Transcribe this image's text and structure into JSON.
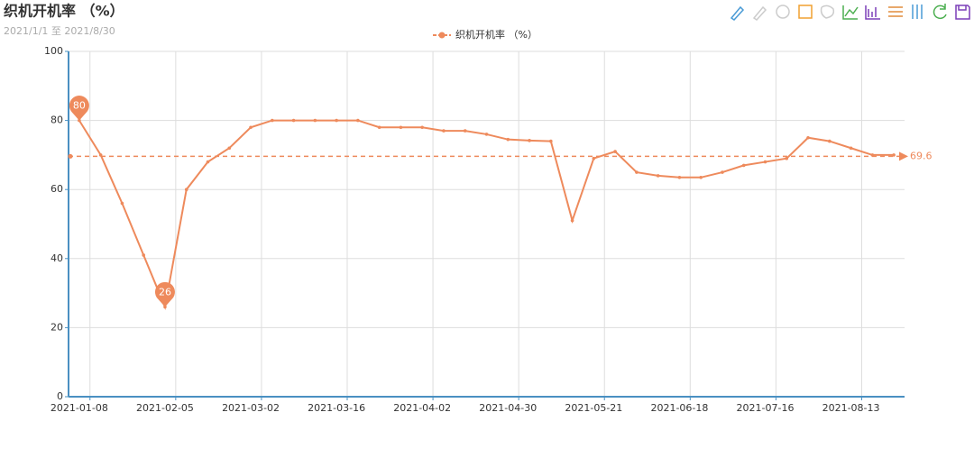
{
  "chart_data": {
    "type": "line",
    "title": "织机开机率 （%）",
    "subtitle": "2021/1/1 至 2021/8/30",
    "categories": [
      "2021-01-08",
      null,
      null,
      null,
      "2021-02-05",
      null,
      null,
      null,
      "2021-03-02",
      null,
      null,
      null,
      "2021-03-16",
      null,
      null,
      null,
      "2021-04-02",
      null,
      null,
      null,
      "2021-04-30",
      null,
      null,
      null,
      "2021-05-21",
      null,
      null,
      null,
      "2021-06-18",
      null,
      null,
      null,
      "2021-07-16",
      null,
      null,
      null,
      "2021-08-13",
      null,
      null
    ],
    "series": [
      {
        "name": "织机开机率 （%）",
        "color": "#ee8a5c",
        "values": [
          80,
          70,
          56,
          41,
          26,
          60,
          68,
          72,
          78,
          80,
          80,
          80,
          80,
          80,
          78,
          78,
          78,
          77,
          77,
          76,
          74.5,
          74.2,
          74,
          51,
          69,
          71,
          65,
          64,
          63.5,
          63.5,
          65,
          67,
          68,
          69,
          75,
          74,
          72,
          70,
          70
        ]
      }
    ],
    "mark_points": [
      {
        "value": 80
      },
      {
        "value": 26
      }
    ],
    "average_line": {
      "value": 69.6
    },
    "ylim": [
      0,
      100
    ],
    "yticks": [
      0,
      20,
      40,
      60,
      80,
      100
    ],
    "grid": true
  }
}
